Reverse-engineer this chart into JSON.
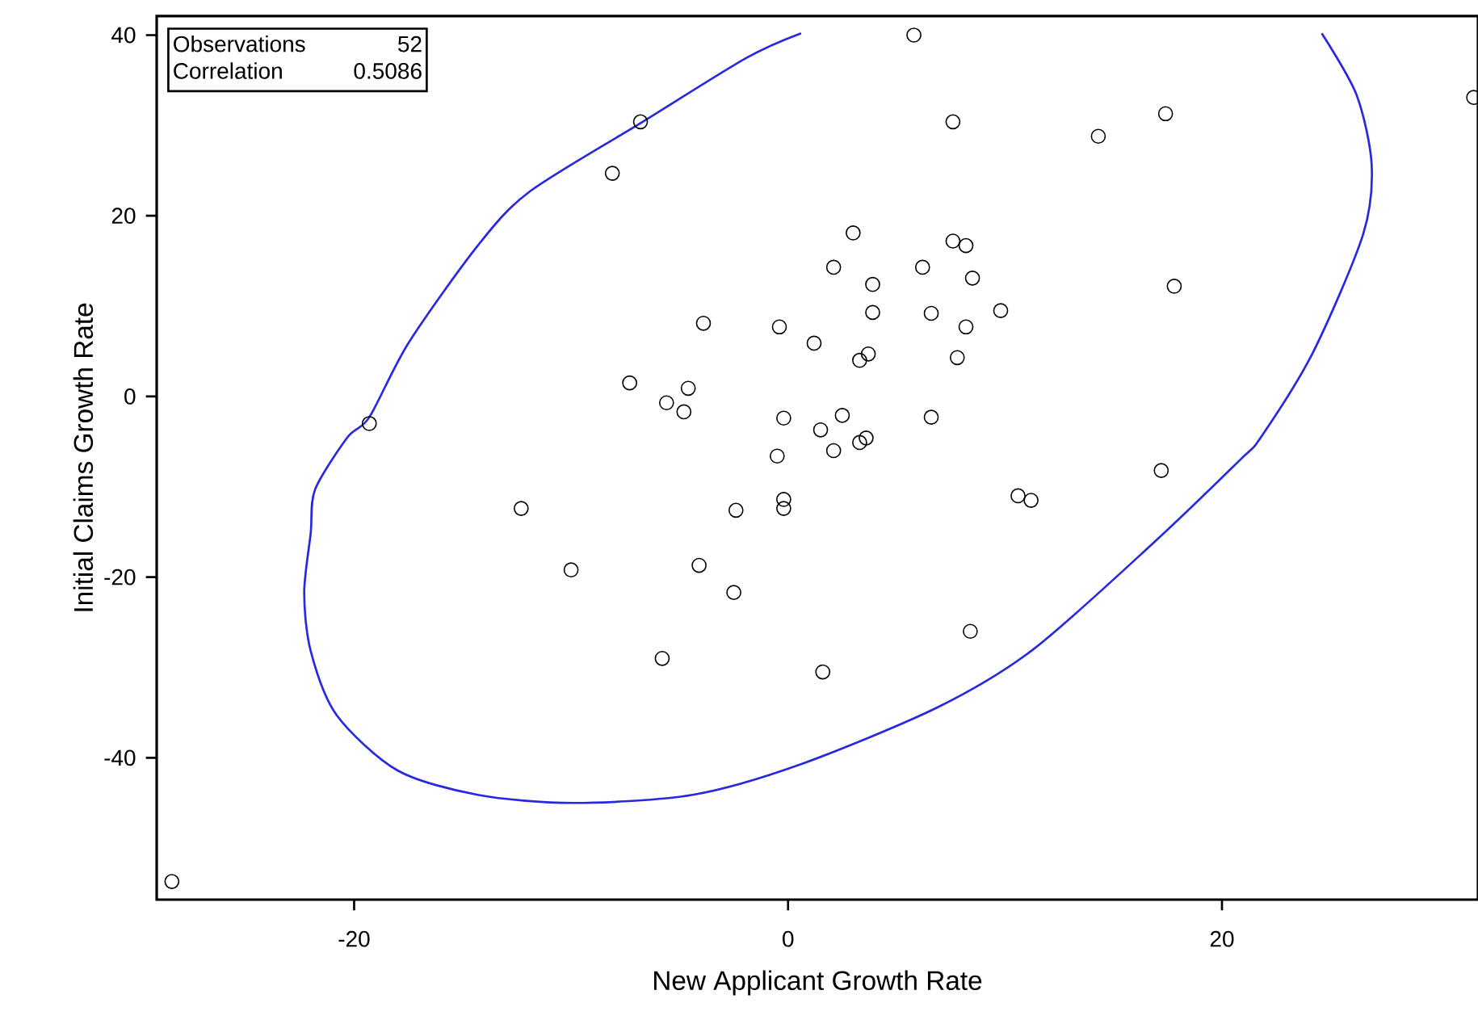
{
  "chart_data": {
    "type": "scatter",
    "xlabel": "New Applicant Growth Rate",
    "ylabel": "Initial Claims Growth Rate",
    "annotations": [
      "Observations",
      "52",
      "Correlation",
      "0.5086"
    ],
    "xlim": [
      -29.1,
      31.8
    ],
    "ylim": [
      -55.7,
      42.1
    ],
    "xticks": [
      -20,
      0,
      20
    ],
    "yticks": [
      -40,
      -20,
      0,
      20,
      40
    ],
    "grid": false,
    "series": [
      {
        "marker": "circle",
        "color": "#000000",
        "x": [
          5.8,
          -6.8,
          -8.1,
          7.6,
          14.3,
          17.4,
          31.6,
          3.0,
          7.6,
          8.2,
          2.1,
          6.2,
          3.9,
          8.5,
          17.8,
          3.9,
          6.6,
          9.8,
          -3.9,
          -0.4,
          8.2,
          1.2,
          3.7,
          3.3,
          7.8,
          -7.3,
          -4.6,
          -5.6,
          -4.8,
          -19.3,
          -0.2,
          2.5,
          6.6,
          1.5,
          3.6,
          3.3,
          -0.5,
          2.1,
          -12.3,
          -2.4,
          -0.2,
          -0.2,
          10.6,
          11.2,
          17.2,
          -10.0,
          -4.1,
          -2.5,
          -5.8,
          1.6,
          8.4,
          -28.4
        ],
        "values": [
          40.0,
          30.4,
          24.7,
          30.4,
          28.8,
          31.3,
          33.1,
          18.1,
          17.2,
          16.7,
          14.3,
          14.3,
          12.4,
          13.1,
          12.2,
          9.3,
          9.2,
          9.5,
          8.1,
          7.7,
          7.7,
          5.9,
          4.7,
          4.0,
          4.3,
          1.5,
          0.9,
          -0.7,
          -1.7,
          -3.0,
          -2.4,
          -2.1,
          -2.3,
          -3.7,
          -4.6,
          -5.1,
          -6.6,
          -6.0,
          -12.4,
          -12.6,
          -11.4,
          -12.4,
          -11.0,
          -11.5,
          -8.2,
          -19.2,
          -18.7,
          -21.7,
          -29.0,
          -30.5,
          -26.0,
          -53.7
        ]
      },
      {
        "type": "line",
        "marker": "none",
        "line_style": "solid",
        "color": "#2828e0",
        "x": [
          0.6,
          -1.9,
          -6.7,
          -11.9,
          -14.3,
          -17.5,
          -19.3,
          -20.3,
          -21.8,
          -22.0,
          -22.3,
          -22.0,
          -20.8,
          -18.0,
          -14.3,
          -9.9,
          -4.4,
          0.6,
          6.9,
          11.3,
          16.8,
          20.8,
          21.8,
          24.2,
          26.5,
          26.9,
          26.2,
          24.6
        ],
        "values": [
          40.2,
          37.5,
          30.4,
          22.7,
          16.7,
          5.9,
          -2.3,
          -4.5,
          -10.3,
          -15.1,
          -21.7,
          -28.2,
          -35.3,
          -41.4,
          -44.1,
          -45.0,
          -44.1,
          -40.7,
          -34.4,
          -28.0,
          -16.3,
          -7.1,
          -4.5,
          4.9,
          17.9,
          25.6,
          33.4,
          40.2
        ]
      }
    ]
  }
}
